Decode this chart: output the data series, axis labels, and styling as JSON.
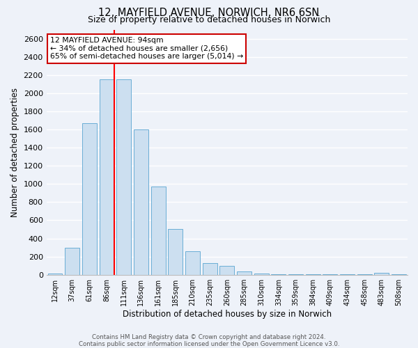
{
  "title1": "12, MAYFIELD AVENUE, NORWICH, NR6 6SN",
  "title2": "Size of property relative to detached houses in Norwich",
  "xlabel": "Distribution of detached houses by size in Norwich",
  "ylabel": "Number of detached properties",
  "bar_labels": [
    "12sqm",
    "37sqm",
    "61sqm",
    "86sqm",
    "111sqm",
    "136sqm",
    "161sqm",
    "185sqm",
    "210sqm",
    "235sqm",
    "260sqm",
    "285sqm",
    "310sqm",
    "334sqm",
    "359sqm",
    "384sqm",
    "409sqm",
    "434sqm",
    "458sqm",
    "483sqm",
    "508sqm"
  ],
  "bar_values": [
    15,
    300,
    1670,
    2150,
    2150,
    1600,
    970,
    500,
    255,
    125,
    100,
    35,
    15,
    5,
    5,
    3,
    3,
    2,
    2,
    20,
    2
  ],
  "bar_color": "#ccdff0",
  "bar_edge_color": "#6aaed6",
  "red_line_x": 3.45,
  "annotation_title": "12 MAYFIELD AVENUE: 94sqm",
  "annotation_line1": "← 34% of detached houses are smaller (2,656)",
  "annotation_line2": "65% of semi-detached houses are larger (5,014) →",
  "annotation_box_facecolor": "#ffffff",
  "annotation_box_edgecolor": "#cc0000",
  "ylim": [
    0,
    2700
  ],
  "yticks": [
    0,
    200,
    400,
    600,
    800,
    1000,
    1200,
    1400,
    1600,
    1800,
    2000,
    2200,
    2400,
    2600
  ],
  "footer1": "Contains HM Land Registry data © Crown copyright and database right 2024.",
  "footer2": "Contains public sector information licensed under the Open Government Licence v3.0.",
  "bg_color": "#eef2f9",
  "grid_color": "#ffffff",
  "spine_color": "#bbbbbb"
}
